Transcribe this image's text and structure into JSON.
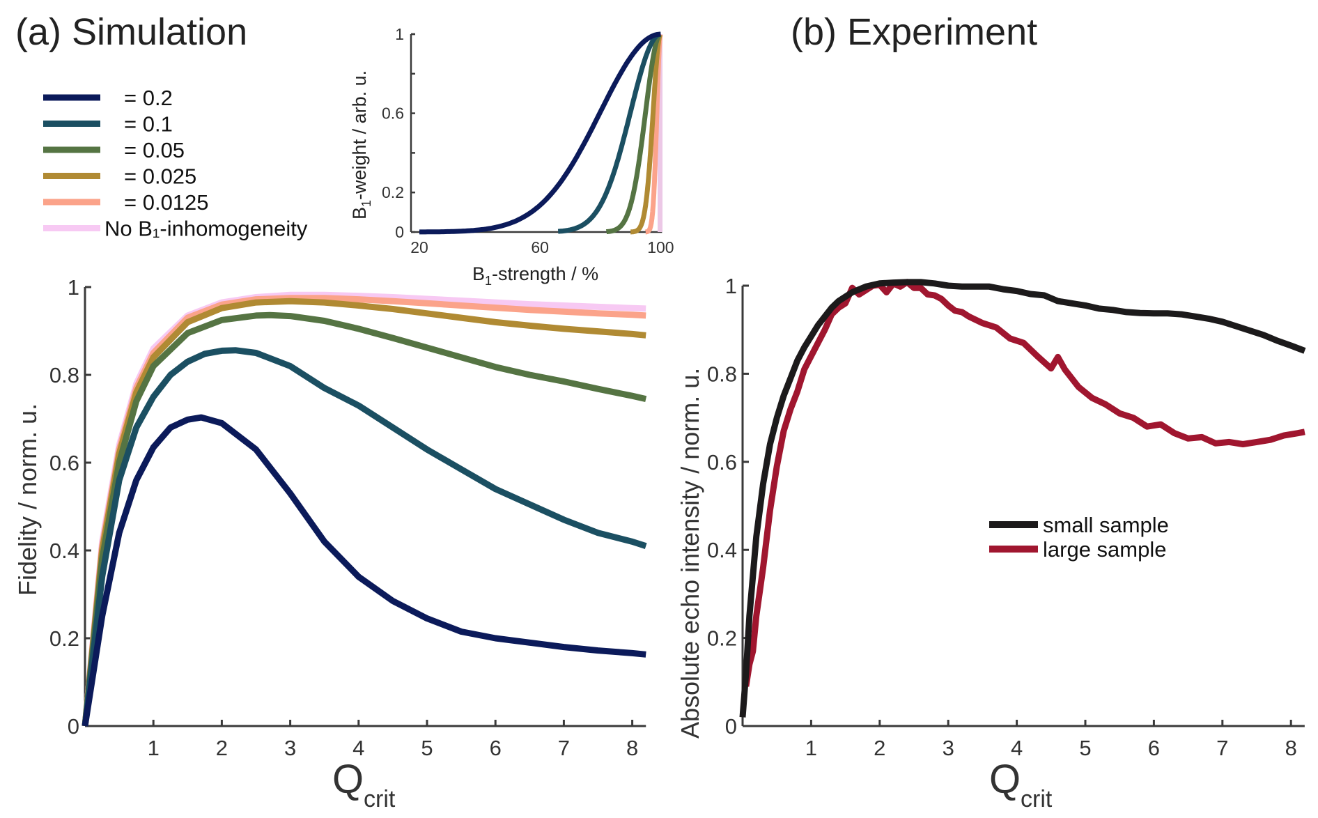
{
  "chart_data": [
    {
      "id": "simulation",
      "type": "line",
      "title": "(a) Simulation",
      "xlabel": "Q",
      "xlabel_sub": "crit",
      "ylabel": "Fidelity / norm. u.",
      "xlim": [
        0,
        8.2
      ],
      "ylim": [
        0,
        1
      ],
      "xticks": [
        "1",
        "2",
        "3",
        "4",
        "5",
        "6",
        "7",
        "8"
      ],
      "xtick_values": [
        1,
        2,
        3,
        4,
        5,
        6,
        7,
        8
      ],
      "yticks": [
        "0",
        "0.2",
        "0.4",
        "0.6",
        "0.8",
        "1"
      ],
      "ytick_values": [
        0,
        0.2,
        0.4,
        0.6,
        0.8,
        1
      ],
      "grid": false,
      "legend_position": "top-left",
      "series": [
        {
          "name": "= 0.2",
          "color": "#0b1a5a",
          "x": [
            0,
            0.25,
            0.5,
            0.75,
            1,
            1.25,
            1.5,
            1.7,
            2,
            2.5,
            3,
            3.5,
            4,
            4.5,
            5,
            5.5,
            6,
            6.5,
            7,
            7.5,
            8,
            8.2
          ],
          "y": [
            0,
            0.25,
            0.44,
            0.56,
            0.635,
            0.68,
            0.698,
            0.703,
            0.69,
            0.63,
            0.53,
            0.42,
            0.34,
            0.285,
            0.245,
            0.215,
            0.2,
            0.19,
            0.18,
            0.172,
            0.166,
            0.163
          ]
        },
        {
          "name": "= 0.1",
          "color": "#1b4f62",
          "x": [
            0,
            0.25,
            0.5,
            0.75,
            1,
            1.25,
            1.5,
            1.75,
            2,
            2.2,
            2.5,
            3,
            3.5,
            4,
            4.5,
            5,
            5.5,
            6,
            6.5,
            7,
            7.5,
            8,
            8.2
          ],
          "y": [
            0,
            0.34,
            0.56,
            0.68,
            0.75,
            0.8,
            0.83,
            0.848,
            0.855,
            0.856,
            0.85,
            0.82,
            0.77,
            0.73,
            0.68,
            0.63,
            0.585,
            0.54,
            0.505,
            0.47,
            0.44,
            0.42,
            0.41
          ]
        },
        {
          "name": "= 0.05",
          "color": "#557443",
          "x": [
            0,
            0.25,
            0.5,
            0.75,
            1,
            1.5,
            2,
            2.5,
            2.7,
            3,
            3.5,
            4,
            4.5,
            5,
            5.5,
            6,
            6.5,
            7,
            7.5,
            8,
            8.2
          ],
          "y": [
            0,
            0.38,
            0.6,
            0.74,
            0.82,
            0.895,
            0.925,
            0.935,
            0.936,
            0.934,
            0.923,
            0.905,
            0.884,
            0.862,
            0.84,
            0.818,
            0.8,
            0.785,
            0.768,
            0.752,
            0.745
          ]
        },
        {
          "name": "= 0.025",
          "color": "#b08a33",
          "x": [
            0,
            0.25,
            0.5,
            0.75,
            1,
            1.5,
            2,
            2.5,
            3,
            3.5,
            4,
            4.5,
            5,
            5.5,
            6,
            6.5,
            7,
            7.5,
            8,
            8.2
          ],
          "y": [
            0,
            0.4,
            0.62,
            0.76,
            0.84,
            0.92,
            0.952,
            0.965,
            0.968,
            0.965,
            0.958,
            0.95,
            0.94,
            0.93,
            0.92,
            0.912,
            0.905,
            0.899,
            0.893,
            0.89
          ]
        },
        {
          "name": "= 0.0125",
          "color": "#fba38a",
          "x": [
            0,
            0.25,
            0.5,
            0.75,
            1,
            1.5,
            2,
            2.5,
            3,
            3.5,
            4,
            4.5,
            5,
            5.5,
            6,
            6.5,
            7,
            7.5,
            8,
            8.2
          ],
          "y": [
            0,
            0.41,
            0.63,
            0.77,
            0.85,
            0.93,
            0.96,
            0.972,
            0.975,
            0.975,
            0.972,
            0.968,
            0.963,
            0.958,
            0.953,
            0.948,
            0.944,
            0.94,
            0.937,
            0.935
          ]
        },
        {
          "name": "No B₁-inhomogeneity",
          "color": "#f7c9f3",
          "x": [
            0,
            0.25,
            0.5,
            0.75,
            1,
            1.5,
            2,
            2.5,
            3,
            3.5,
            4,
            4.5,
            5,
            5.5,
            6,
            6.5,
            7,
            7.5,
            8,
            8.2
          ],
          "y": [
            0,
            0.42,
            0.64,
            0.78,
            0.86,
            0.935,
            0.965,
            0.977,
            0.982,
            0.982,
            0.98,
            0.977,
            0.973,
            0.969,
            0.965,
            0.961,
            0.958,
            0.955,
            0.952,
            0.951
          ]
        }
      ],
      "inset": {
        "type": "line",
        "xlabel": "B₁-strength / %",
        "ylabel": "B₁-weight / arb. u.",
        "xlim": [
          20,
          100
        ],
        "ylim": [
          0,
          1
        ],
        "xticks": [
          "20",
          "60",
          "100"
        ],
        "xtick_values": [
          20,
          60,
          100
        ],
        "yticks": [
          "0",
          "0.2",
          "0.6",
          "1"
        ],
        "ytick_values": [
          0,
          0.2,
          0.6,
          1
        ],
        "yminor_ticks": [
          0.4,
          0.8
        ],
        "series": [
          {
            "name": "= 0.2",
            "color": "#0b1a5a",
            "sigma": 0.2
          },
          {
            "name": "= 0.1",
            "color": "#1b4f62",
            "sigma": 0.1
          },
          {
            "name": "= 0.05",
            "color": "#557443",
            "sigma": 0.05
          },
          {
            "name": "= 0.025",
            "color": "#b08a33",
            "sigma": 0.025
          },
          {
            "name": "= 0.0125",
            "color": "#fba38a",
            "sigma": 0.0125
          },
          {
            "name": "No B₁-inhomogeneity",
            "color": "#ecc8e6",
            "sigma": 0
          }
        ]
      }
    },
    {
      "id": "experiment",
      "type": "line",
      "title": "(b) Experiment",
      "xlabel": "Q",
      "xlabel_sub": "crit",
      "ylabel": "Absolute echo intensity / norm. u.",
      "xlim": [
        0,
        8.2
      ],
      "ylim": [
        0,
        1
      ],
      "xticks": [
        "1",
        "2",
        "3",
        "4",
        "5",
        "6",
        "7",
        "8"
      ],
      "xtick_values": [
        1,
        2,
        3,
        4,
        5,
        6,
        7,
        8
      ],
      "yticks": [
        "0",
        "0.2",
        "0.4",
        "0.6",
        "0.8",
        "1"
      ],
      "ytick_values": [
        0,
        0.2,
        0.4,
        0.6,
        0.8,
        1
      ],
      "grid": false,
      "legend_position": "center-right",
      "series": [
        {
          "name": "small sample",
          "color": "#1c1a1b",
          "x": [
            0,
            0.05,
            0.1,
            0.2,
            0.3,
            0.4,
            0.5,
            0.6,
            0.7,
            0.8,
            0.9,
            1.0,
            1.1,
            1.2,
            1.3,
            1.4,
            1.5,
            1.6,
            1.8,
            2.0,
            2.2,
            2.4,
            2.6,
            2.8,
            3.0,
            3.2,
            3.4,
            3.6,
            3.8,
            4.0,
            4.2,
            4.4,
            4.6,
            4.8,
            5.0,
            5.2,
            5.4,
            5.6,
            5.8,
            6.0,
            6.2,
            6.4,
            6.6,
            6.8,
            7.0,
            7.2,
            7.4,
            7.6,
            7.8,
            8.0,
            8.2
          ],
          "y": [
            0.02,
            0.12,
            0.25,
            0.43,
            0.55,
            0.64,
            0.7,
            0.75,
            0.79,
            0.83,
            0.86,
            0.885,
            0.91,
            0.93,
            0.95,
            0.965,
            0.975,
            0.985,
            0.998,
            1.005,
            1.007,
            1.008,
            1.008,
            1.005,
            1.0,
            0.998,
            0.998,
            0.998,
            0.992,
            0.988,
            0.981,
            0.978,
            0.965,
            0.96,
            0.955,
            0.948,
            0.945,
            0.94,
            0.938,
            0.937,
            0.937,
            0.935,
            0.93,
            0.925,
            0.918,
            0.908,
            0.898,
            0.888,
            0.875,
            0.864,
            0.852
          ]
        },
        {
          "name": "large sample",
          "color": "#a0162f",
          "x": [
            0.05,
            0.1,
            0.15,
            0.2,
            0.3,
            0.4,
            0.5,
            0.6,
            0.7,
            0.8,
            0.9,
            1.0,
            1.1,
            1.2,
            1.3,
            1.4,
            1.5,
            1.6,
            1.7,
            1.8,
            1.9,
            2.0,
            2.1,
            2.2,
            2.3,
            2.4,
            2.5,
            2.6,
            2.7,
            2.8,
            2.9,
            3.0,
            3.1,
            3.2,
            3.3,
            3.5,
            3.7,
            3.9,
            4.1,
            4.3,
            4.5,
            4.6,
            4.7,
            4.9,
            5.1,
            5.3,
            5.5,
            5.7,
            5.9,
            6.1,
            6.3,
            6.5,
            6.7,
            6.9,
            7.1,
            7.3,
            7.5,
            7.7,
            7.9,
            8.1,
            8.2
          ],
          "y": [
            0.09,
            0.14,
            0.17,
            0.25,
            0.36,
            0.49,
            0.59,
            0.67,
            0.72,
            0.76,
            0.81,
            0.84,
            0.87,
            0.9,
            0.935,
            0.95,
            0.96,
            0.995,
            0.98,
            0.99,
            1.0,
            1.002,
            0.985,
            1.005,
            0.998,
            1.008,
            0.995,
            0.995,
            0.98,
            0.978,
            0.97,
            0.955,
            0.943,
            0.94,
            0.93,
            0.915,
            0.905,
            0.88,
            0.87,
            0.84,
            0.812,
            0.838,
            0.81,
            0.77,
            0.745,
            0.73,
            0.71,
            0.7,
            0.68,
            0.685,
            0.665,
            0.653,
            0.656,
            0.642,
            0.645,
            0.64,
            0.645,
            0.65,
            0.66,
            0.665,
            0.668
          ]
        }
      ]
    }
  ]
}
